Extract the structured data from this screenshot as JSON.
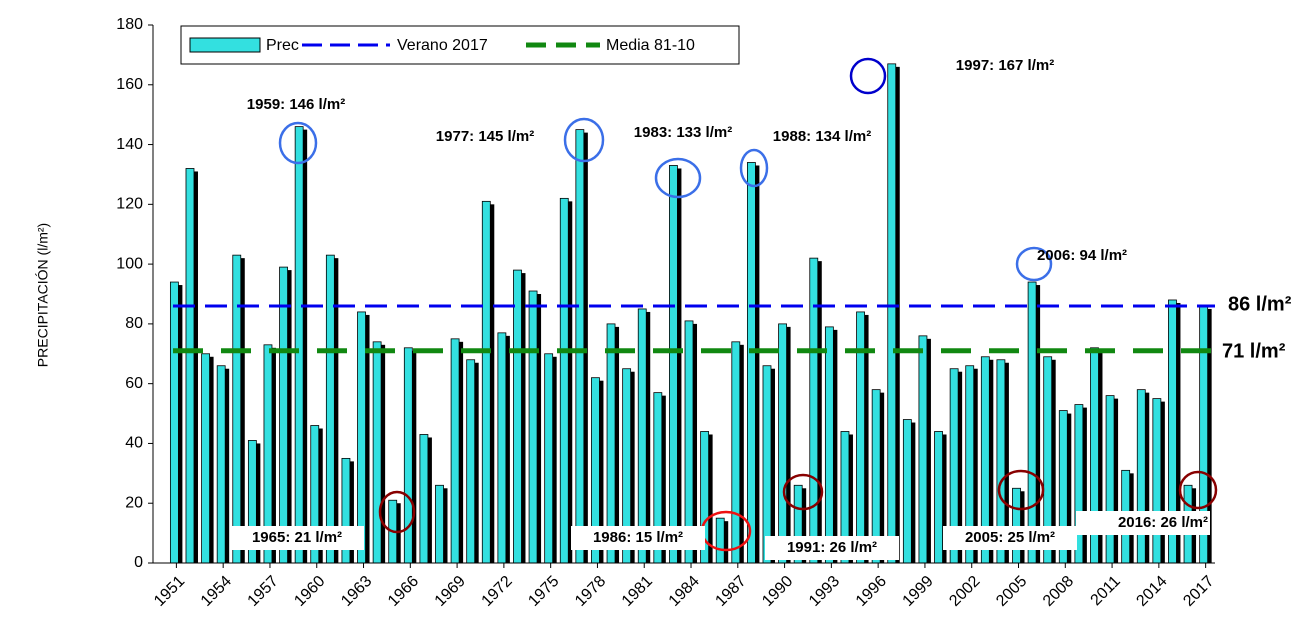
{
  "chart_data": {
    "type": "bar",
    "y_label": "PRECIPITACIÓN (l/m²)",
    "x": [
      1951,
      1952,
      1953,
      1954,
      1955,
      1956,
      1957,
      1958,
      1959,
      1960,
      1961,
      1962,
      1963,
      1964,
      1965,
      1966,
      1967,
      1968,
      1969,
      1970,
      1971,
      1972,
      1973,
      1974,
      1975,
      1976,
      1977,
      1978,
      1979,
      1980,
      1981,
      1982,
      1983,
      1984,
      1985,
      1986,
      1987,
      1988,
      1989,
      1990,
      1991,
      1992,
      1993,
      1994,
      1995,
      1996,
      1997,
      1998,
      1999,
      2000,
      2001,
      2002,
      2003,
      2004,
      2005,
      2006,
      2007,
      2008,
      2009,
      2010,
      2011,
      2012,
      2013,
      2014,
      2015,
      2016,
      2017
    ],
    "series": [
      {
        "name": "Prec",
        "color": "#33e0e0",
        "values": [
          94,
          132,
          70,
          66,
          103,
          41,
          73,
          99,
          146,
          46,
          103,
          35,
          84,
          74,
          21,
          72,
          43,
          26,
          75,
          68,
          121,
          77,
          98,
          91,
          70,
          122,
          145,
          62,
          80,
          65,
          85,
          57,
          133,
          81,
          44,
          15,
          74,
          134,
          66,
          80,
          26,
          102,
          79,
          44,
          84,
          58,
          167,
          48,
          76,
          44,
          65,
          66,
          69,
          68,
          25,
          94,
          69,
          51,
          53,
          72,
          56,
          31,
          58,
          55,
          88,
          26,
          86
        ]
      }
    ],
    "reference_lines": [
      {
        "name": "Verano 2017",
        "value": 86,
        "label": "86 l/m²",
        "color": "#0000ee"
      },
      {
        "name": "Media 81-10",
        "value": 71,
        "label": "71 l/m²",
        "color": "#118811"
      }
    ],
    "annotations": [
      {
        "text": "1959: 146 l/m²",
        "color": "#3b6fe8"
      },
      {
        "text": "1977: 145 l/m²",
        "color": "#3b6fe8"
      },
      {
        "text": "1983: 133 l/m²",
        "color": "#3b6fe8"
      },
      {
        "text": "1988: 134 l/m²",
        "color": "#3b6fe8"
      },
      {
        "text": "1997: 167 l/m²",
        "color": "#0000cc"
      },
      {
        "text": "2006: 94 l/m²",
        "color": "#3b6fe8"
      },
      {
        "text": "1965: 21 l/m²",
        "color": "#993311"
      },
      {
        "text": "1986: 15 l/m²",
        "color": "#ee1111"
      },
      {
        "text": "1991: 26 l/m²",
        "color": "#993311"
      },
      {
        "text": "2005: 25 l/m²",
        "color": "#993311"
      },
      {
        "text": "2016: 26 l/m²",
        "color": "#993311"
      }
    ],
    "xlim": [
      1949.5,
      2017.6
    ],
    "xticks": [
      1951,
      1954,
      1957,
      1960,
      1963,
      1966,
      1969,
      1972,
      1975,
      1978,
      1981,
      1984,
      1987,
      1990,
      1993,
      1996,
      1999,
      2002,
      2005,
      2008,
      2011,
      2014,
      2017
    ],
    "ylim": [
      0,
      180
    ],
    "yticks": [
      0,
      20,
      40,
      60,
      80,
      100,
      120,
      140,
      160,
      180
    ],
    "grid": false
  }
}
